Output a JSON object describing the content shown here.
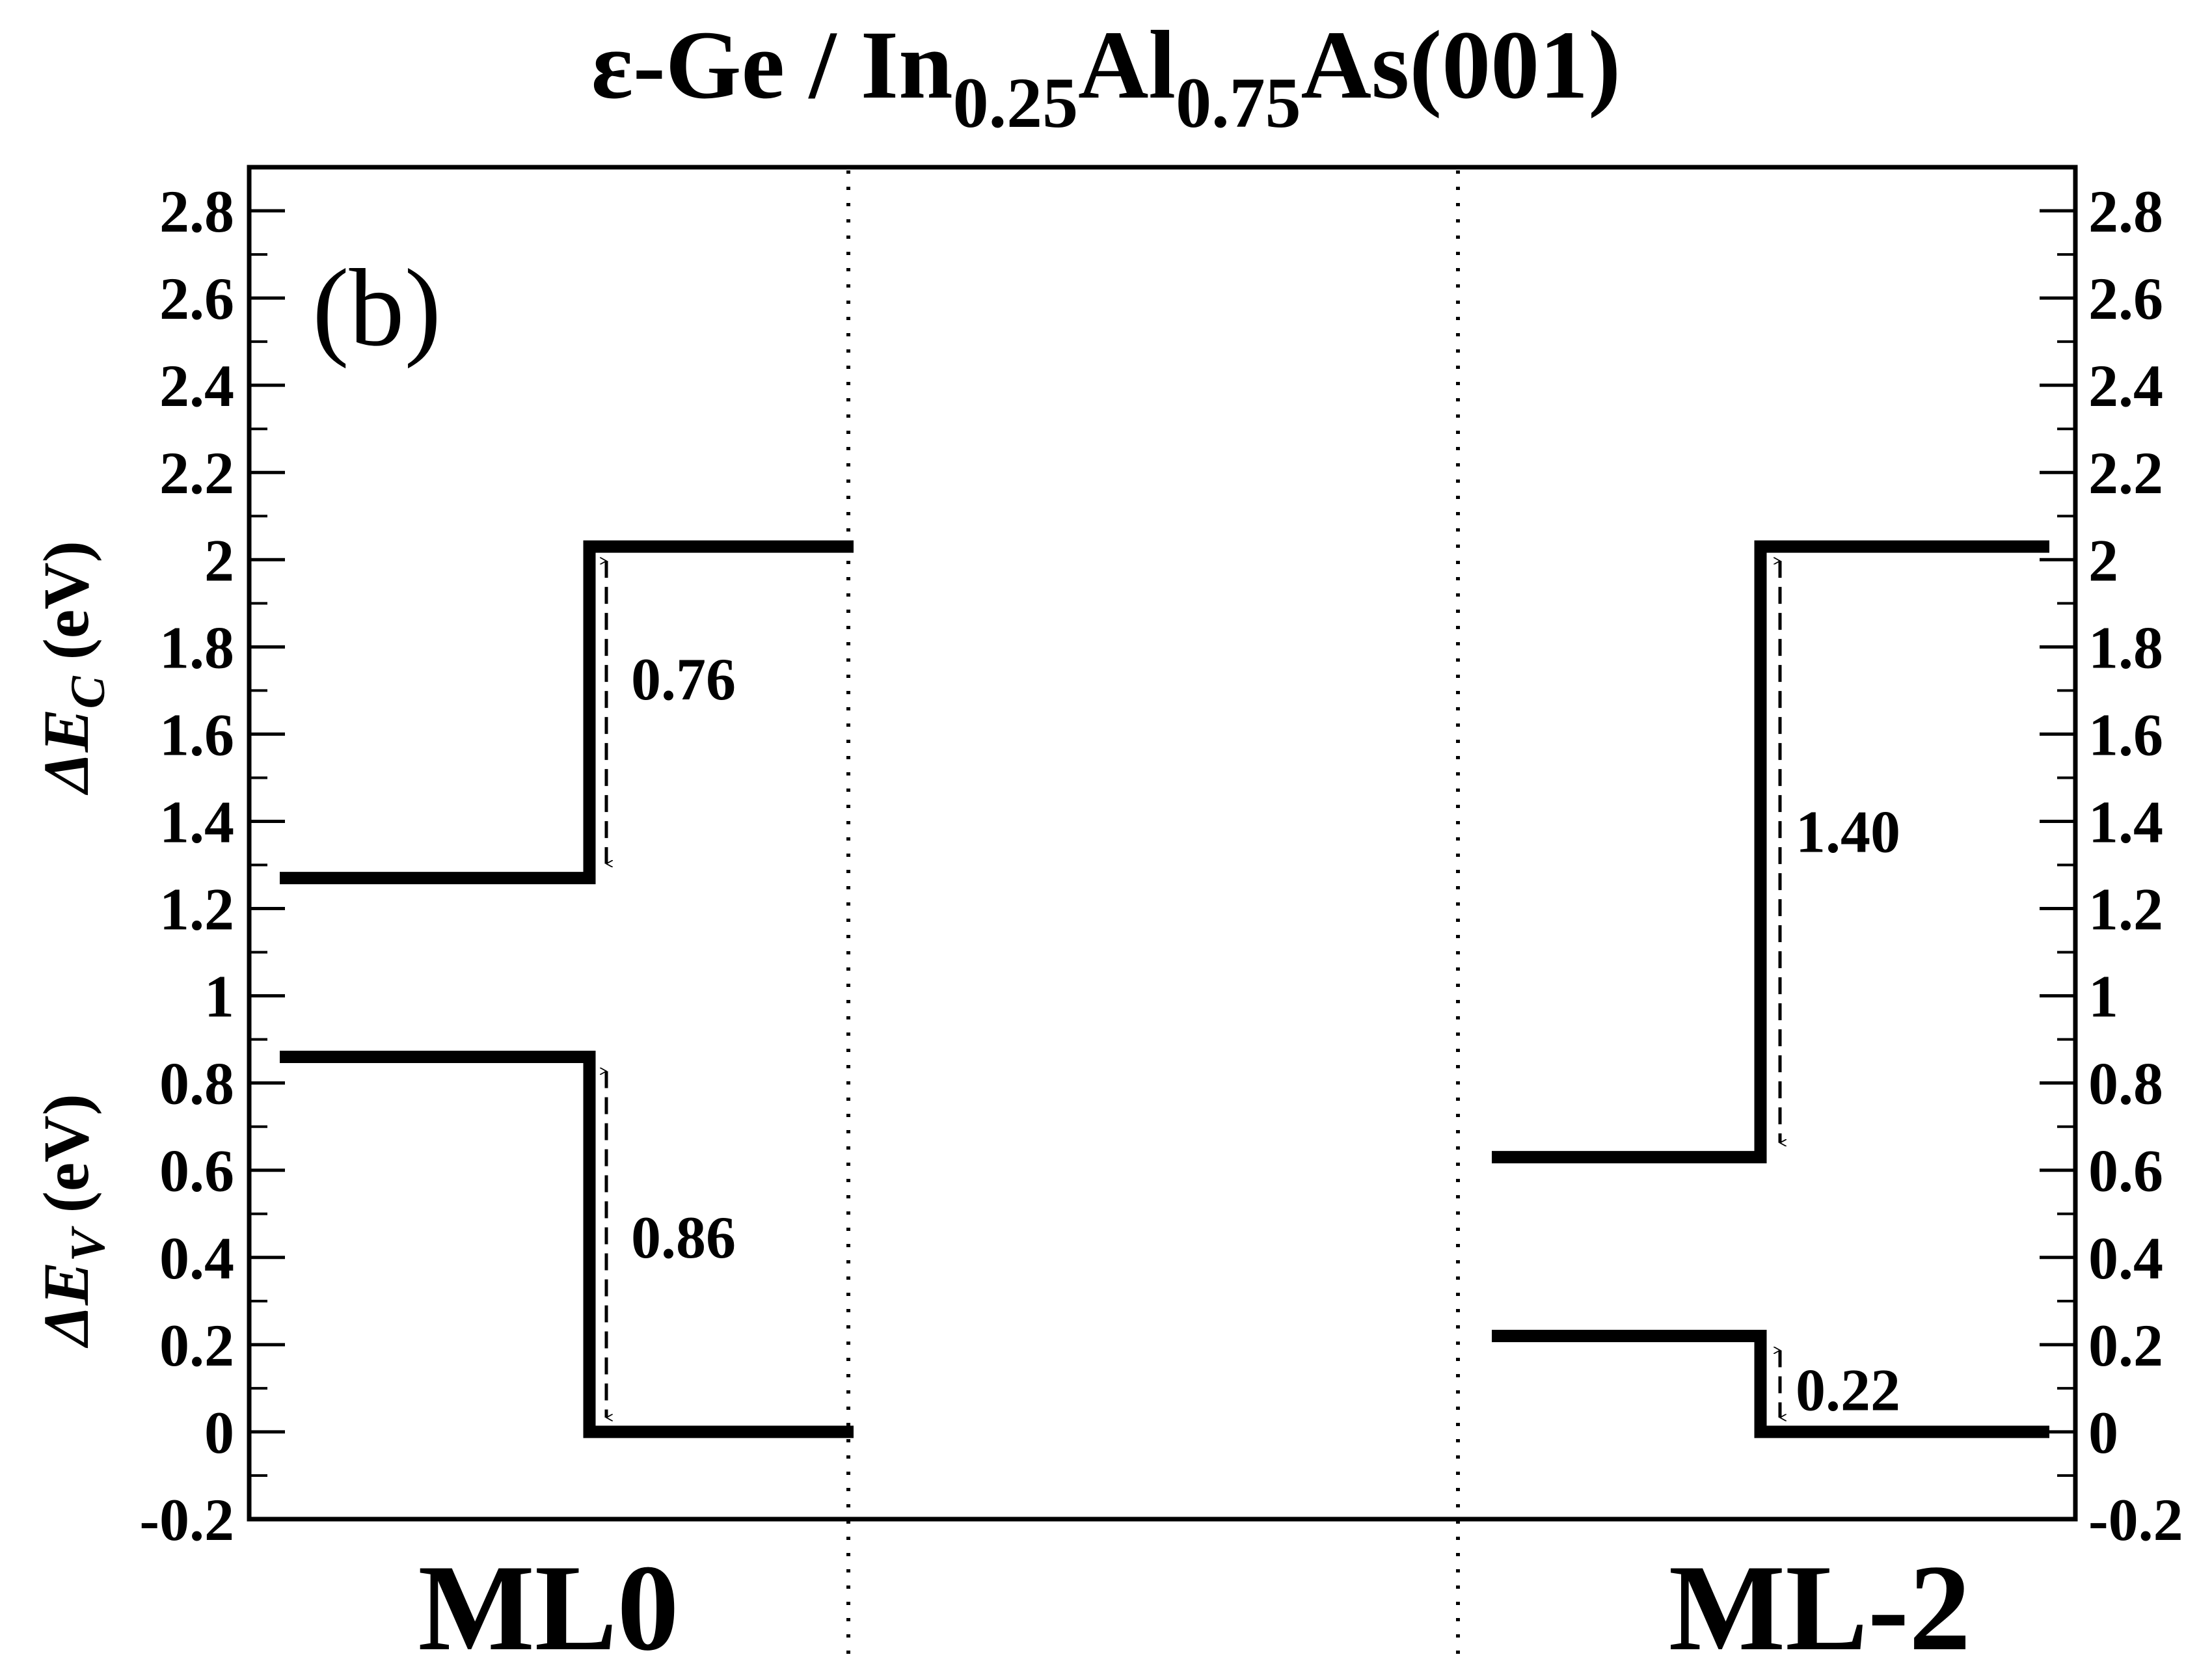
{
  "chart_data": {
    "type": "band-alignment",
    "title": {
      "prefix": "ε-Ge / In",
      "sub1": "0.25",
      "mid": "Al",
      "sub2": "0.75",
      "suffix": "As(001)"
    },
    "panel_label": "(b)",
    "ylabel_top": {
      "main": "ΔE",
      "sub": "C",
      "unit": " (eV)"
    },
    "ylabel_bottom": {
      "main": "ΔE",
      "sub": "V",
      "unit": " (eV)"
    },
    "ylim": [
      -0.2,
      2.9
    ],
    "yticks": [
      -0.2,
      0,
      0.2,
      0.4,
      0.6,
      0.8,
      1,
      1.2,
      1.4,
      1.6,
      1.8,
      2,
      2.2,
      2.4,
      2.6,
      2.8
    ],
    "ytick_labels": [
      "-0.2",
      "0",
      "0.2",
      "0.4",
      "0.6",
      "0.8",
      "1",
      "1.2",
      "1.4",
      "1.6",
      "1.8",
      "2",
      "2.2",
      "2.4",
      "2.6",
      "2.8"
    ],
    "grid": false,
    "panels": [
      {
        "label": "ML0",
        "conduction": {
          "left": 1.27,
          "right": 2.03
        },
        "valence": {
          "left": 0.86,
          "right": 0.0
        },
        "conduction_offset": {
          "value": 0.76,
          "label": "0.76"
        },
        "valence_offset": {
          "value": 0.86,
          "label": "0.86"
        }
      },
      {
        "label": "ML-2",
        "conduction": {
          "left": 0.63,
          "right": 2.03
        },
        "valence": {
          "left": 0.22,
          "right": 0.0
        },
        "conduction_offset": {
          "value": 1.4,
          "label": "1.40"
        },
        "valence_offset": {
          "value": 0.22,
          "label": "0.22"
        }
      }
    ]
  }
}
